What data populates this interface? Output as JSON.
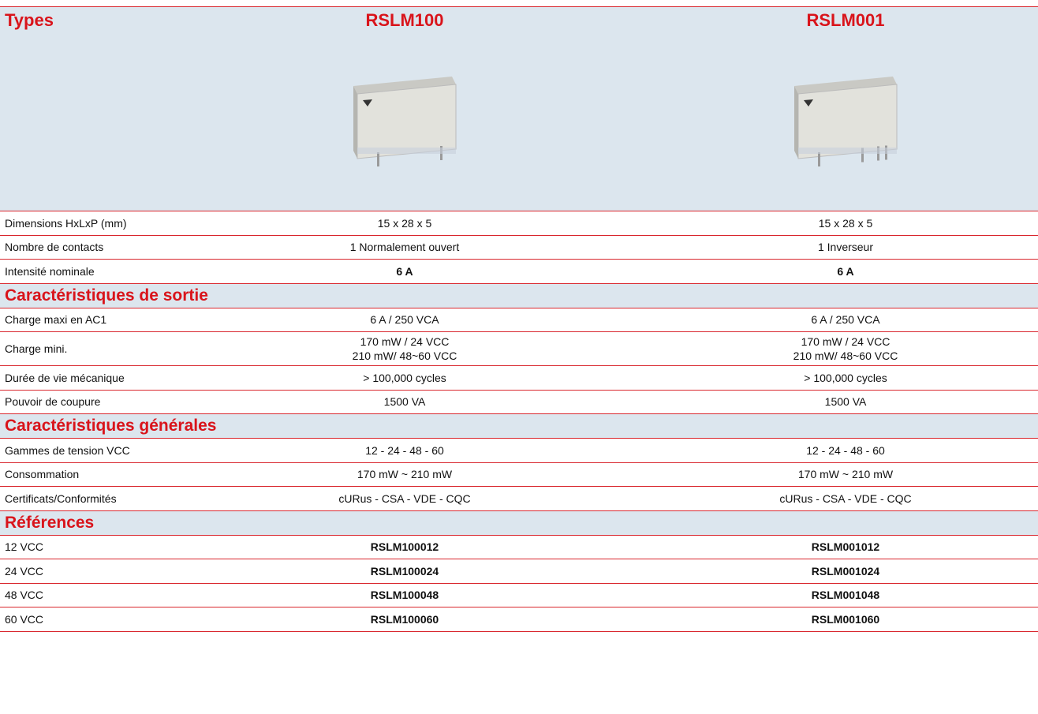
{
  "header": {
    "label": "Types",
    "columns": [
      "RSLM100",
      "RSLM001"
    ]
  },
  "sections": [
    {
      "rows": [
        {
          "label": "Dimensions HxLxP (mm)",
          "values": [
            "15 x 28 x 5",
            "15 x 28 x 5"
          ]
        },
        {
          "label": "Nombre de contacts",
          "values": [
            "1 Normalement ouvert",
            "1 Inverseur"
          ]
        },
        {
          "label": "Intensité nominale",
          "values": [
            "6 A",
            "6 A"
          ],
          "bold": true
        }
      ]
    },
    {
      "title": "Caractéristiques de sortie",
      "rows": [
        {
          "label": "Charge maxi en AC1",
          "values": [
            "6 A / 250 VCA",
            "6 A / 250 VCA"
          ]
        },
        {
          "label": "Charge mini.",
          "values": [
            [
              "170 mW / 24 VCC",
              "210 mW/ 48~60 VCC"
            ],
            [
              "170 mW / 24 VCC",
              "210 mW/ 48~60 VCC"
            ]
          ]
        },
        {
          "label": "Durée de vie mécanique",
          "values": [
            "> 100,000 cycles",
            "> 100,000 cycles"
          ]
        },
        {
          "label": "Pouvoir de coupure",
          "values": [
            "1500 VA",
            "1500 VA"
          ]
        }
      ]
    },
    {
      "title": "Caractéristiques générales",
      "rows": [
        {
          "label": "Gammes de tension VCC",
          "values": [
            "12 - 24 - 48 - 60",
            "12 - 24 - 48 - 60"
          ]
        },
        {
          "label": "Consommation",
          "values": [
            "170 mW ~ 210 mW",
            "170 mW ~ 210 mW"
          ]
        },
        {
          "label": "Certificats/Conformités",
          "values": [
            "cURus - CSA - VDE - CQC",
            "cURus - CSA - VDE - CQC"
          ]
        }
      ]
    },
    {
      "title": "Références",
      "rows": [
        {
          "label": "12 VCC",
          "values": [
            "RSLM100012",
            "RSLM001012"
          ],
          "bold": true
        },
        {
          "label": "24 VCC",
          "values": [
            "RSLM100024",
            "RSLM001024"
          ],
          "bold": true
        },
        {
          "label": "48 VCC",
          "values": [
            "RSLM100048",
            "RSLM001048"
          ],
          "bold": true
        },
        {
          "label": "60 VCC",
          "values": [
            "RSLM100060",
            "RSLM001060"
          ],
          "bold": true
        }
      ]
    }
  ]
}
